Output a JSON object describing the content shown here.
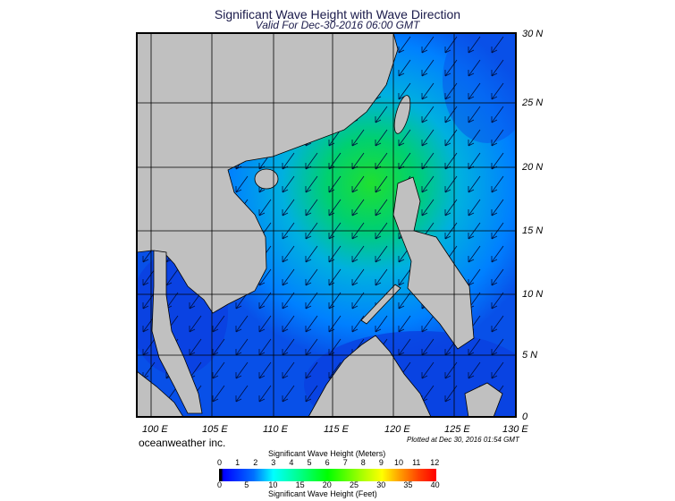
{
  "title": "Significant Wave Height with Wave Direction",
  "subtitle": "Valid For Dec-30-2016 06:00 GMT",
  "map": {
    "lat_labels": [
      "30 N",
      "25 N",
      "20 N",
      "15 N",
      "10 N",
      "5 N",
      "0"
    ],
    "lon_labels": [
      "100 E",
      "105 E",
      "110 E",
      "115 E",
      "120 E",
      "125 E",
      "130 E"
    ],
    "colors": {
      "land": "#c0c0c0",
      "ocean_low": "#0a3fe0",
      "ocean_mid": "#00a8ff",
      "ocean_high": "#00e040"
    },
    "wave_direction_from": "northeast"
  },
  "credit": "oceanweather inc.",
  "plotted": "Plotted at Dec 30, 2016 01:54 GMT",
  "legend": {
    "meters_title": "Significant Wave Height (Meters)",
    "meters_ticks": [
      "0",
      "1",
      "2",
      "3",
      "4",
      "5",
      "6",
      "7",
      "8",
      "9",
      "10",
      "11",
      "12"
    ],
    "feet_title": "Significant Wave Height (Feet)",
    "feet_ticks": [
      "0",
      "5",
      "10",
      "15",
      "20",
      "25",
      "30",
      "35",
      "40"
    ]
  }
}
